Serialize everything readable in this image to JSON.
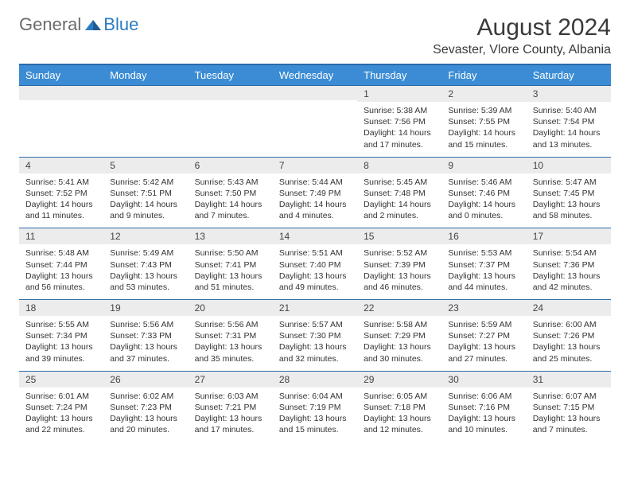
{
  "logo": {
    "text1": "General",
    "text2": "Blue"
  },
  "title": "August 2024",
  "location": "Sevaster, Vlore County, Albania",
  "colors": {
    "header_bg": "#3b8cd4",
    "header_border": "#2a6aa8",
    "daynum_bg": "#ececec",
    "text": "#333333",
    "logo_gray": "#6b6b6b",
    "logo_blue": "#2b7cc4"
  },
  "weekdays": [
    "Sunday",
    "Monday",
    "Tuesday",
    "Wednesday",
    "Thursday",
    "Friday",
    "Saturday"
  ],
  "weeks": [
    [
      {
        "n": "",
        "sr": "",
        "ss": "",
        "dl": ""
      },
      {
        "n": "",
        "sr": "",
        "ss": "",
        "dl": ""
      },
      {
        "n": "",
        "sr": "",
        "ss": "",
        "dl": ""
      },
      {
        "n": "",
        "sr": "",
        "ss": "",
        "dl": ""
      },
      {
        "n": "1",
        "sr": "Sunrise: 5:38 AM",
        "ss": "Sunset: 7:56 PM",
        "dl": "Daylight: 14 hours and 17 minutes."
      },
      {
        "n": "2",
        "sr": "Sunrise: 5:39 AM",
        "ss": "Sunset: 7:55 PM",
        "dl": "Daylight: 14 hours and 15 minutes."
      },
      {
        "n": "3",
        "sr": "Sunrise: 5:40 AM",
        "ss": "Sunset: 7:54 PM",
        "dl": "Daylight: 14 hours and 13 minutes."
      }
    ],
    [
      {
        "n": "4",
        "sr": "Sunrise: 5:41 AM",
        "ss": "Sunset: 7:52 PM",
        "dl": "Daylight: 14 hours and 11 minutes."
      },
      {
        "n": "5",
        "sr": "Sunrise: 5:42 AM",
        "ss": "Sunset: 7:51 PM",
        "dl": "Daylight: 14 hours and 9 minutes."
      },
      {
        "n": "6",
        "sr": "Sunrise: 5:43 AM",
        "ss": "Sunset: 7:50 PM",
        "dl": "Daylight: 14 hours and 7 minutes."
      },
      {
        "n": "7",
        "sr": "Sunrise: 5:44 AM",
        "ss": "Sunset: 7:49 PM",
        "dl": "Daylight: 14 hours and 4 minutes."
      },
      {
        "n": "8",
        "sr": "Sunrise: 5:45 AM",
        "ss": "Sunset: 7:48 PM",
        "dl": "Daylight: 14 hours and 2 minutes."
      },
      {
        "n": "9",
        "sr": "Sunrise: 5:46 AM",
        "ss": "Sunset: 7:46 PM",
        "dl": "Daylight: 14 hours and 0 minutes."
      },
      {
        "n": "10",
        "sr": "Sunrise: 5:47 AM",
        "ss": "Sunset: 7:45 PM",
        "dl": "Daylight: 13 hours and 58 minutes."
      }
    ],
    [
      {
        "n": "11",
        "sr": "Sunrise: 5:48 AM",
        "ss": "Sunset: 7:44 PM",
        "dl": "Daylight: 13 hours and 56 minutes."
      },
      {
        "n": "12",
        "sr": "Sunrise: 5:49 AM",
        "ss": "Sunset: 7:43 PM",
        "dl": "Daylight: 13 hours and 53 minutes."
      },
      {
        "n": "13",
        "sr": "Sunrise: 5:50 AM",
        "ss": "Sunset: 7:41 PM",
        "dl": "Daylight: 13 hours and 51 minutes."
      },
      {
        "n": "14",
        "sr": "Sunrise: 5:51 AM",
        "ss": "Sunset: 7:40 PM",
        "dl": "Daylight: 13 hours and 49 minutes."
      },
      {
        "n": "15",
        "sr": "Sunrise: 5:52 AM",
        "ss": "Sunset: 7:39 PM",
        "dl": "Daylight: 13 hours and 46 minutes."
      },
      {
        "n": "16",
        "sr": "Sunrise: 5:53 AM",
        "ss": "Sunset: 7:37 PM",
        "dl": "Daylight: 13 hours and 44 minutes."
      },
      {
        "n": "17",
        "sr": "Sunrise: 5:54 AM",
        "ss": "Sunset: 7:36 PM",
        "dl": "Daylight: 13 hours and 42 minutes."
      }
    ],
    [
      {
        "n": "18",
        "sr": "Sunrise: 5:55 AM",
        "ss": "Sunset: 7:34 PM",
        "dl": "Daylight: 13 hours and 39 minutes."
      },
      {
        "n": "19",
        "sr": "Sunrise: 5:56 AM",
        "ss": "Sunset: 7:33 PM",
        "dl": "Daylight: 13 hours and 37 minutes."
      },
      {
        "n": "20",
        "sr": "Sunrise: 5:56 AM",
        "ss": "Sunset: 7:31 PM",
        "dl": "Daylight: 13 hours and 35 minutes."
      },
      {
        "n": "21",
        "sr": "Sunrise: 5:57 AM",
        "ss": "Sunset: 7:30 PM",
        "dl": "Daylight: 13 hours and 32 minutes."
      },
      {
        "n": "22",
        "sr": "Sunrise: 5:58 AM",
        "ss": "Sunset: 7:29 PM",
        "dl": "Daylight: 13 hours and 30 minutes."
      },
      {
        "n": "23",
        "sr": "Sunrise: 5:59 AM",
        "ss": "Sunset: 7:27 PM",
        "dl": "Daylight: 13 hours and 27 minutes."
      },
      {
        "n": "24",
        "sr": "Sunrise: 6:00 AM",
        "ss": "Sunset: 7:26 PM",
        "dl": "Daylight: 13 hours and 25 minutes."
      }
    ],
    [
      {
        "n": "25",
        "sr": "Sunrise: 6:01 AM",
        "ss": "Sunset: 7:24 PM",
        "dl": "Daylight: 13 hours and 22 minutes."
      },
      {
        "n": "26",
        "sr": "Sunrise: 6:02 AM",
        "ss": "Sunset: 7:23 PM",
        "dl": "Daylight: 13 hours and 20 minutes."
      },
      {
        "n": "27",
        "sr": "Sunrise: 6:03 AM",
        "ss": "Sunset: 7:21 PM",
        "dl": "Daylight: 13 hours and 17 minutes."
      },
      {
        "n": "28",
        "sr": "Sunrise: 6:04 AM",
        "ss": "Sunset: 7:19 PM",
        "dl": "Daylight: 13 hours and 15 minutes."
      },
      {
        "n": "29",
        "sr": "Sunrise: 6:05 AM",
        "ss": "Sunset: 7:18 PM",
        "dl": "Daylight: 13 hours and 12 minutes."
      },
      {
        "n": "30",
        "sr": "Sunrise: 6:06 AM",
        "ss": "Sunset: 7:16 PM",
        "dl": "Daylight: 13 hours and 10 minutes."
      },
      {
        "n": "31",
        "sr": "Sunrise: 6:07 AM",
        "ss": "Sunset: 7:15 PM",
        "dl": "Daylight: 13 hours and 7 minutes."
      }
    ]
  ]
}
